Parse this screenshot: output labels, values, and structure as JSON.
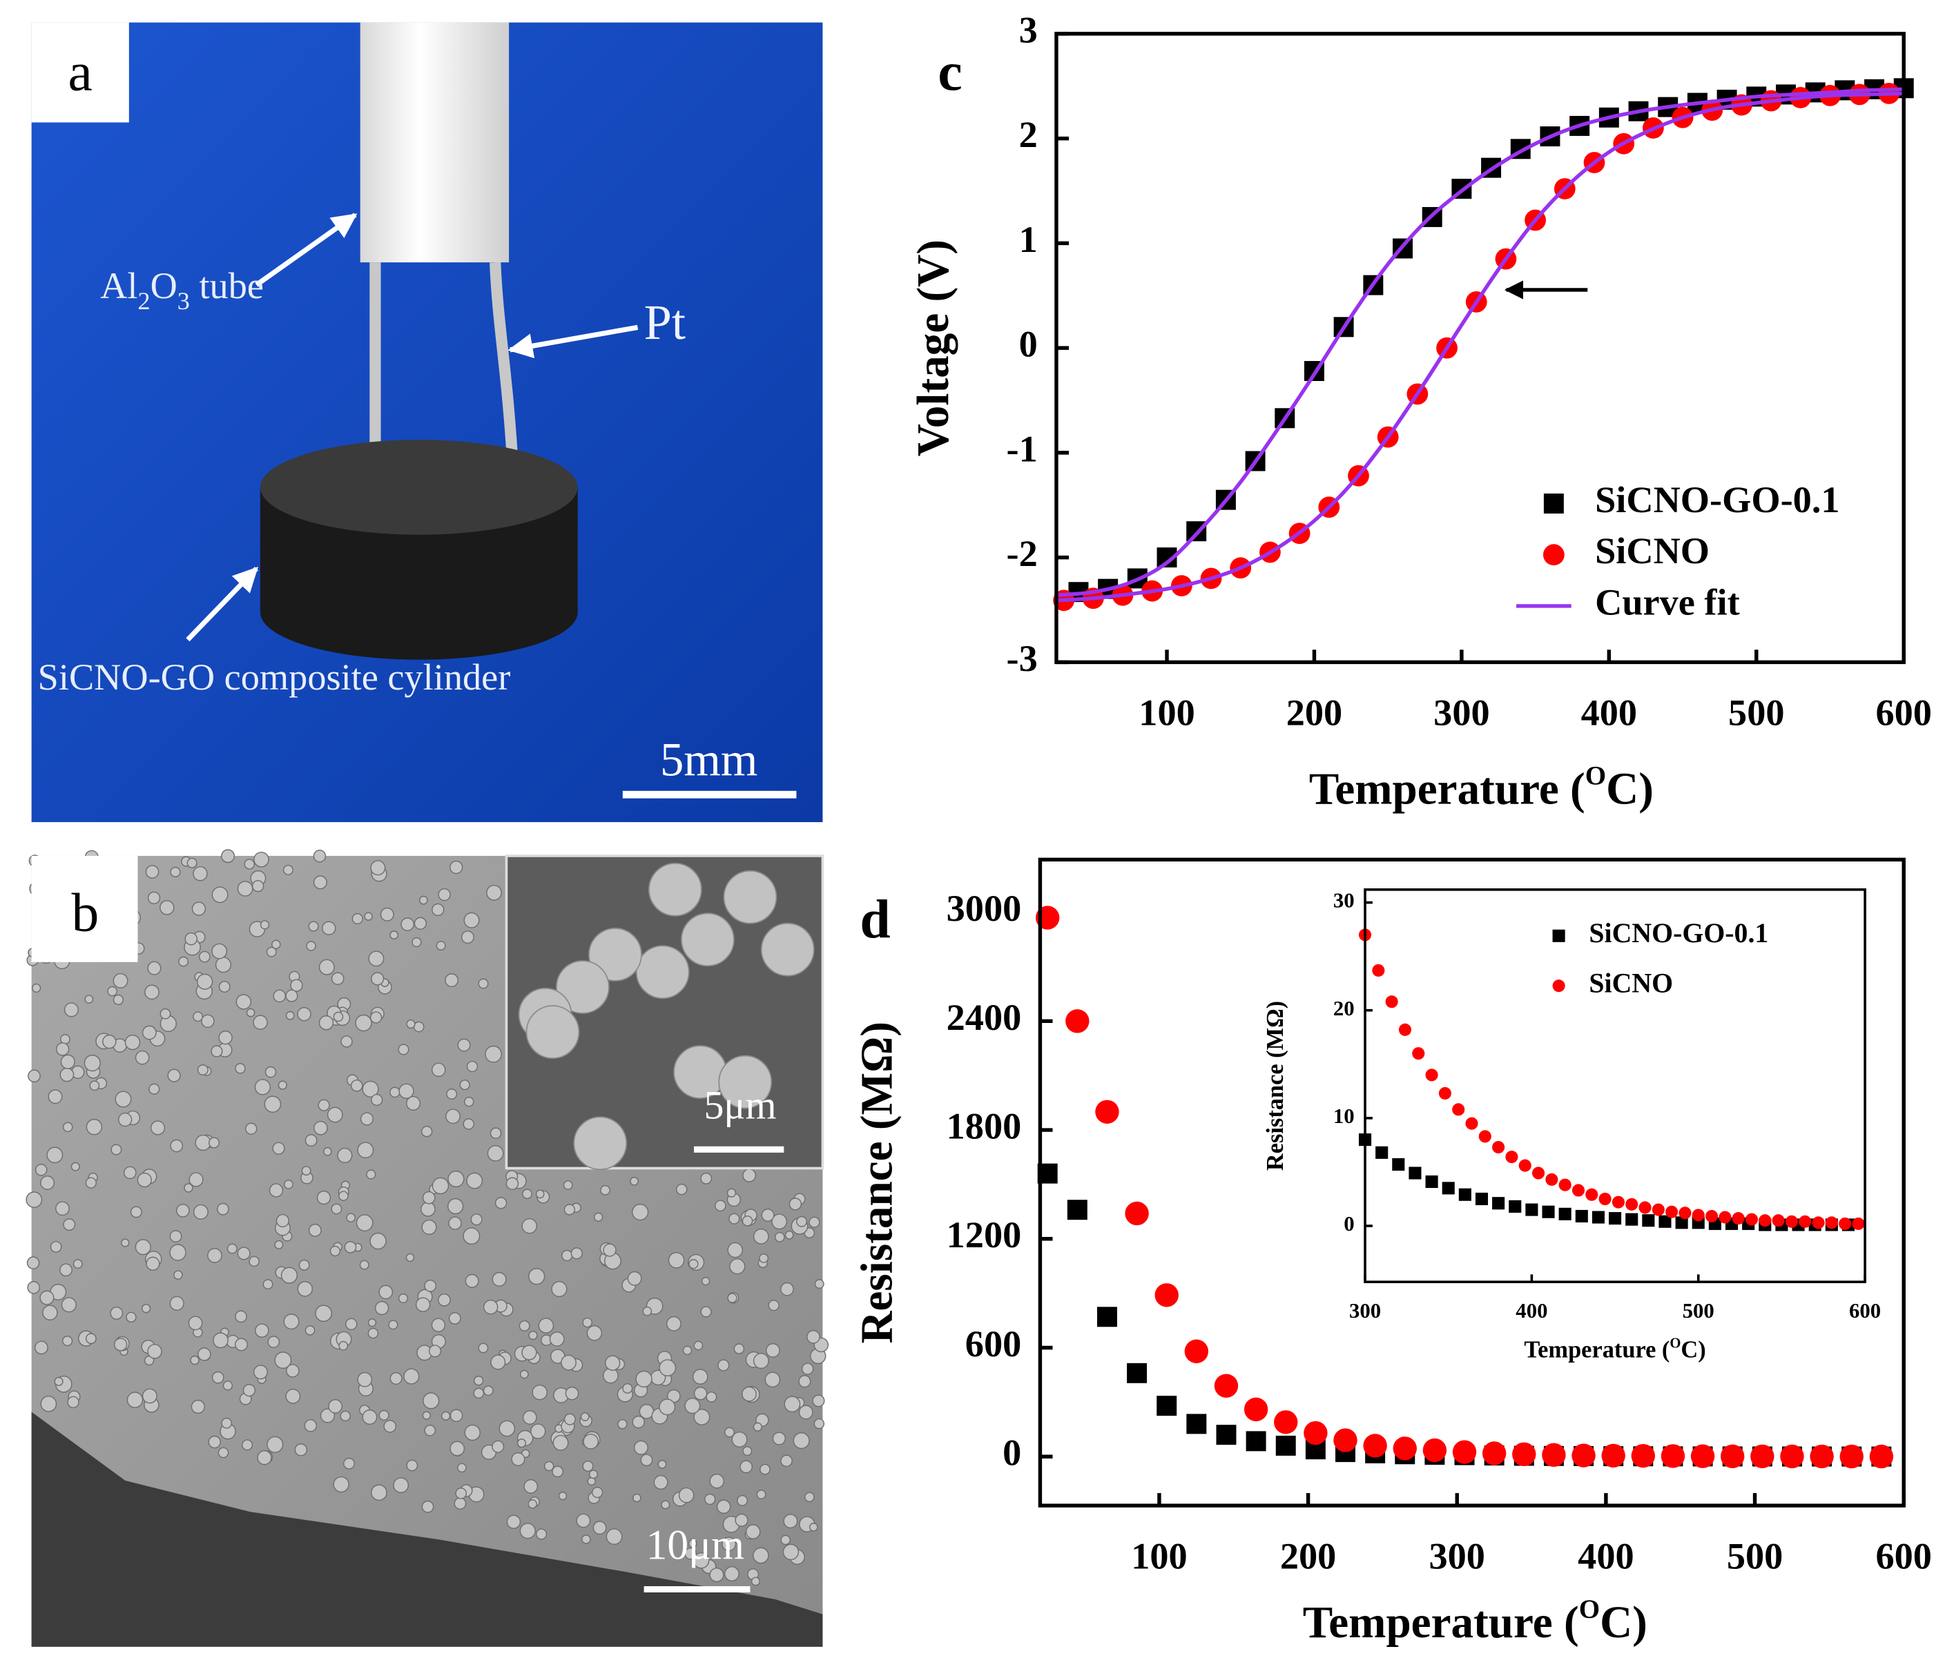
{
  "panels": {
    "a": {
      "label": "a",
      "tube_label": [
        "Al",
        "2",
        "O",
        "3",
        " tube"
      ],
      "wire_label": "Pt",
      "cylinder_label": "SiCNO-GO composite cylinder",
      "scale_bar": "5mm"
    },
    "b": {
      "label": "b",
      "inset_scale_bar": "5μm",
      "scale_bar": "10μm"
    }
  },
  "chart_data": [
    {
      "type": "scatter",
      "panel_label": "c",
      "x_label": [
        "Temperature (",
        "O",
        "C)"
      ],
      "y_label": "Voltage (V)",
      "xlim": [
        25,
        600
      ],
      "ylim": [
        -3,
        3
      ],
      "xticks": [
        100,
        200,
        300,
        400,
        500,
        600
      ],
      "yticks": [
        -3,
        -2,
        -1,
        0,
        1,
        2,
        3
      ],
      "legend": "lower right",
      "series": [
        {
          "name": "SiCNO-GO-0.1",
          "color": "#000000",
          "marker": "square",
          "x": [
            40,
            60,
            80,
            100,
            120,
            140,
            160,
            180,
            200,
            220,
            240,
            260,
            280,
            300,
            320,
            340,
            360,
            380,
            400,
            420,
            440,
            460,
            480,
            500,
            520,
            540,
            560,
            580,
            600
          ],
          "values": [
            -2.33,
            -2.3,
            -2.2,
            -2.0,
            -1.75,
            -1.45,
            -1.08,
            -0.67,
            -0.22,
            0.2,
            0.6,
            0.95,
            1.25,
            1.52,
            1.72,
            1.9,
            2.02,
            2.12,
            2.2,
            2.26,
            2.3,
            2.34,
            2.37,
            2.4,
            2.42,
            2.44,
            2.46,
            2.47,
            2.48
          ]
        },
        {
          "name": "SiCNO",
          "color": "#ff0000",
          "marker": "circle",
          "x": [
            30,
            50,
            70,
            90,
            110,
            130,
            150,
            170,
            190,
            210,
            230,
            250,
            270,
            290,
            310,
            330,
            350,
            370,
            390,
            410,
            430,
            450,
            470,
            490,
            510,
            530,
            550,
            570,
            590
          ],
          "values": [
            -2.41,
            -2.39,
            -2.36,
            -2.32,
            -2.27,
            -2.2,
            -2.1,
            -1.95,
            -1.77,
            -1.52,
            -1.22,
            -0.85,
            -0.44,
            0,
            0.44,
            0.85,
            1.22,
            1.52,
            1.77,
            1.95,
            2.1,
            2.2,
            2.27,
            2.32,
            2.36,
            2.39,
            2.41,
            2.42,
            2.43
          ]
        },
        {
          "name": "Curve fit",
          "color": "#9933ee",
          "marker": "line",
          "x": [
            25,
            50,
            75,
            100,
            125,
            150,
            175,
            200,
            225,
            250,
            275,
            300,
            325,
            350,
            375,
            400,
            425,
            450,
            475,
            500,
            525,
            550,
            575,
            600
          ],
          "curves": [
            [
              -2.36,
              -2.33,
              -2.24,
              -2.05,
              -1.7,
              -1.28,
              -0.78,
              -0.25,
              0.3,
              0.8,
              1.2,
              1.5,
              1.75,
              1.95,
              2.1,
              2.2,
              2.27,
              2.32,
              2.36,
              2.4,
              2.42,
              2.44,
              2.46,
              2.47
            ],
            [
              -2.41,
              -2.39,
              -2.35,
              -2.3,
              -2.22,
              -2.1,
              -1.91,
              -1.65,
              -1.3,
              -0.85,
              -0.33,
              0.22,
              0.75,
              1.22,
              1.59,
              1.87,
              2.06,
              2.2,
              2.29,
              2.34,
              2.38,
              2.41,
              2.42,
              2.43
            ]
          ]
        }
      ]
    },
    {
      "type": "scatter",
      "panel_label": "d",
      "x_label": [
        "Temperature (",
        "O",
        "C)"
      ],
      "y_label": "Resistance (MΩ)",
      "xlim": [
        20,
        600
      ],
      "ylim": [
        -270,
        3290
      ],
      "xticks": [
        100,
        200,
        300,
        400,
        500,
        600
      ],
      "yticks": [
        0,
        600,
        1200,
        1800,
        2400,
        3000
      ],
      "series": [
        {
          "name": "SiCNO-GO-0.1",
          "color": "#000000",
          "marker": "square",
          "x": [
            25,
            45,
            65,
            85,
            105,
            125,
            145,
            165,
            185,
            205,
            225,
            245,
            265,
            285,
            305,
            325,
            345,
            365,
            385,
            405,
            425,
            445,
            465,
            485,
            505,
            525,
            545,
            565,
            585
          ],
          "values": [
            1560,
            1360,
            770,
            460,
            280,
            180,
            120,
            85,
            60,
            40,
            25,
            18,
            13,
            10,
            8,
            6,
            4.5,
            3.5,
            2.8,
            2.2,
            1.7,
            1.3,
            1,
            0.8,
            0.6,
            0.5,
            0.4,
            0.3,
            0.25
          ]
        },
        {
          "name": "SiCNO",
          "color": "#ff0000",
          "marker": "circle",
          "x": [
            25,
            45,
            65,
            85,
            105,
            125,
            145,
            165,
            185,
            205,
            225,
            245,
            265,
            285,
            305,
            325,
            345,
            365,
            385,
            405,
            425,
            445,
            465,
            485,
            505,
            525,
            545,
            565,
            585
          ],
          "values": [
            2970,
            2400,
            1900,
            1340,
            890,
            580,
            390,
            260,
            190,
            130,
            90,
            60,
            45,
            35,
            25,
            18,
            13,
            9,
            6,
            5,
            4,
            3,
            2,
            1.5,
            1.2,
            1,
            0.8,
            0.6,
            0.5
          ]
        }
      ]
    },
    {
      "type": "scatter",
      "x_label": [
        "Temperature (",
        "O",
        "C)"
      ],
      "y_label": "Resistance (MΩ)",
      "xlim": [
        300,
        600
      ],
      "ylim": [
        -5.2,
        31.2
      ],
      "xticks": [
        300,
        400,
        500,
        600
      ],
      "yticks": [
        0,
        10,
        20,
        30
      ],
      "legend": "upper right",
      "series": [
        {
          "name": "SiCNO-GO-0.1",
          "color": "#000000",
          "marker": "square",
          "x": [
            300,
            310,
            320,
            330,
            340,
            350,
            360,
            370,
            380,
            390,
            400,
            410,
            420,
            430,
            440,
            450,
            460,
            470,
            480,
            490,
            500,
            510,
            520,
            530,
            540,
            550,
            560,
            570,
            580,
            590
          ],
          "values": [
            8,
            6.8,
            5.7,
            4.9,
            4.1,
            3.5,
            2.9,
            2.5,
            2.1,
            1.8,
            1.5,
            1.3,
            1.1,
            0.9,
            0.8,
            0.7,
            0.6,
            0.5,
            0.4,
            0.3,
            0.3,
            0.2,
            0.2,
            0.2,
            0.1,
            0.1,
            0.1,
            0.1,
            0.1,
            0.1
          ]
        },
        {
          "name": "SiCNO",
          "color": "#ff0000",
          "marker": "circle",
          "x": [
            300,
            308,
            316,
            324,
            332,
            340,
            348,
            356,
            364,
            372,
            380,
            388,
            396,
            404,
            412,
            420,
            428,
            436,
            444,
            452,
            460,
            468,
            476,
            484,
            492,
            500,
            508,
            516,
            524,
            532,
            540,
            548,
            556,
            564,
            572,
            580,
            588,
            596
          ],
          "values": [
            27,
            23.7,
            20.8,
            18.2,
            16,
            14,
            12.3,
            10.8,
            9.5,
            8.3,
            7.3,
            6.4,
            5.6,
            4.9,
            4.3,
            3.8,
            3.3,
            2.9,
            2.5,
            2.2,
            2,
            1.7,
            1.5,
            1.3,
            1.2,
            1,
            0.9,
            0.8,
            0.7,
            0.6,
            0.5,
            0.5,
            0.4,
            0.4,
            0.3,
            0.3,
            0.2,
            0.2
          ]
        }
      ]
    }
  ]
}
